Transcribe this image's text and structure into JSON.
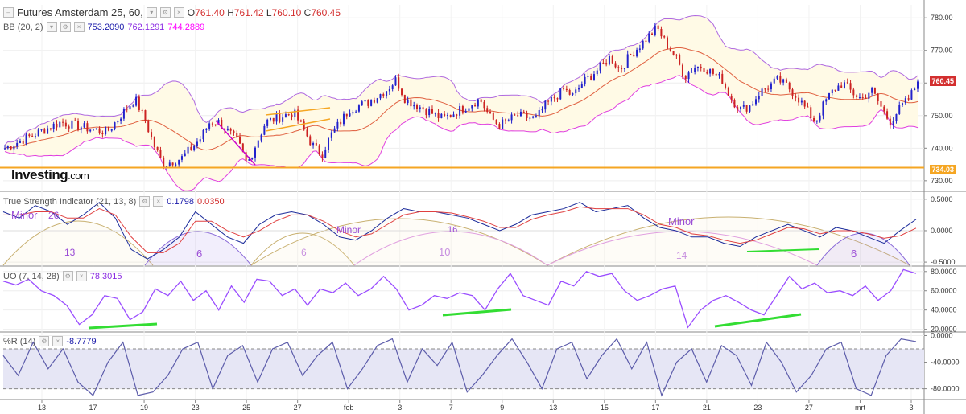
{
  "header": {
    "symbol": "Futures Amsterdam 25, 60,",
    "open_label": "O",
    "open": "761.40",
    "high_label": "H",
    "high": "761.42",
    "low_label": "L",
    "low": "760.10",
    "close_label": "C",
    "close": "760.45",
    "dropdown_icon": "chevron-down-icon"
  },
  "bb": {
    "label": "BB (20, 2)",
    "v1": "753.2090",
    "v2": "762.1291",
    "v3": "744.2889",
    "colors": {
      "v1": "#1a1aaa",
      "v2": "#8a2be2",
      "v3": "#ff00ff"
    }
  },
  "tsi": {
    "label": "True Strength Indicator (21, 13, 8)",
    "v1": "0.1798",
    "v2": "0.0350"
  },
  "uo": {
    "label": "UO (7, 14, 28)",
    "v1": "78.3015"
  },
  "wr": {
    "label": "%R (14)",
    "v1": "-8.7779"
  },
  "logo": {
    "main": "Investing",
    "suffix": ".com"
  },
  "price_tags": {
    "last": "760.45",
    "support": "734.03"
  },
  "colors": {
    "up": "#2222cc",
    "down": "#cc2222",
    "band": "#b06ae0",
    "band_fill": "#fffae6",
    "basis": "#e06040",
    "support": "#f5a623",
    "uo": "#9a4dff",
    "wr": "#5c5caa",
    "annot_green": "#33dd33",
    "cycle_text": "#9b4dd6"
  },
  "chart_data": [
    {
      "type": "candlestick",
      "title": "Futures Amsterdam 25, 60,",
      "ylim": [
        727,
        784
      ],
      "yticks": [
        "730.00",
        "740.00",
        "750.00",
        "760.00",
        "770.00",
        "780.00"
      ],
      "yticks_values": [
        730,
        740,
        750,
        760,
        770,
        780
      ],
      "xticks": [
        "13",
        "17",
        "19",
        "23",
        "25",
        "27",
        "feb",
        "3",
        "7",
        "9",
        "13",
        "15",
        "17",
        "21",
        "23",
        "27",
        "mrt",
        "3"
      ],
      "close_path": [
        [
          0,
          740
        ],
        [
          3,
          744
        ],
        [
          6,
          748
        ],
        [
          9,
          746
        ],
        [
          11,
          745
        ],
        [
          13,
          752
        ],
        [
          14,
          755
        ],
        [
          15,
          749
        ],
        [
          16,
          741
        ],
        [
          17,
          735
        ],
        [
          19,
          737
        ],
        [
          21,
          743
        ],
        [
          22,
          748
        ],
        [
          23,
          748
        ],
        [
          25,
          742
        ],
        [
          26,
          735
        ],
        [
          28,
          748
        ],
        [
          30,
          750
        ],
        [
          31,
          751
        ],
        [
          32,
          746
        ],
        [
          33,
          741
        ],
        [
          34,
          738
        ],
        [
          35,
          744
        ],
        [
          36,
          748
        ],
        [
          37,
          752
        ],
        [
          39,
          754
        ],
        [
          41,
          758
        ],
        [
          42,
          761
        ],
        [
          43,
          755
        ],
        [
          45,
          752
        ],
        [
          47,
          749
        ],
        [
          49,
          752
        ],
        [
          51,
          755
        ],
        [
          52,
          750
        ],
        [
          53,
          747
        ],
        [
          55,
          750
        ],
        [
          57,
          749
        ],
        [
          58,
          753
        ],
        [
          60,
          758
        ],
        [
          61,
          756
        ],
        [
          62,
          760
        ],
        [
          64,
          765
        ],
        [
          65,
          768
        ],
        [
          66,
          764
        ],
        [
          67,
          768
        ],
        [
          69,
          774
        ],
        [
          70,
          777
        ],
        [
          71,
          772
        ],
        [
          72,
          768
        ],
        [
          73,
          762
        ],
        [
          74,
          765
        ],
        [
          75,
          765
        ],
        [
          77,
          761
        ],
        [
          78,
          755
        ],
        [
          79,
          752
        ],
        [
          80,
          753
        ],
        [
          81,
          757
        ],
        [
          83,
          761
        ],
        [
          84,
          759
        ],
        [
          85,
          756
        ],
        [
          86,
          752
        ],
        [
          87,
          748
        ],
        [
          88,
          754
        ],
        [
          89,
          758
        ],
        [
          90,
          760
        ],
        [
          91,
          757
        ],
        [
          92,
          755
        ],
        [
          93,
          758
        ],
        [
          94,
          753
        ],
        [
          95,
          748
        ],
        [
          96,
          752
        ],
        [
          97,
          755
        ],
        [
          98,
          760
        ]
      ],
      "bb_upper_label": "BB (20, 2)",
      "horizontal_line": 734.03,
      "last_price": 760.45
    },
    {
      "type": "line",
      "title": "True Strength Indicator (21, 13, 8)",
      "ylim": [
        -0.55,
        0.6
      ],
      "yticks": [
        "-0.5000",
        "0.0000",
        "0.5000"
      ],
      "yticks_values": [
        -0.5,
        0,
        0.5
      ],
      "series": [
        {
          "values": [
            0.3,
            0.2,
            0.4,
            0.3,
            0.1,
            0.25,
            0.45,
            0.2,
            -0.3,
            -0.45,
            -0.3,
            -0.1,
            0.3,
            0.1,
            -0.1,
            -0.2,
            0.1,
            0.25,
            0.3,
            0.25,
            0.1,
            -0.1,
            -0.15,
            0.0,
            0.2,
            0.35,
            0.3,
            0.3,
            0.25,
            0.2,
            0.1,
            0.0,
            0.1,
            0.25,
            0.3,
            0.35,
            0.45,
            0.3,
            0.35,
            0.4,
            0.2,
            0.05,
            0.0,
            -0.1,
            -0.1,
            -0.2,
            -0.25,
            -0.1,
            0.0,
            0.1,
            0.0,
            -0.1,
            0.05,
            0.0,
            -0.1,
            -0.2,
            0.0,
            0.18
          ]
        },
        {
          "values": [
            0.25,
            0.25,
            0.3,
            0.3,
            0.2,
            0.2,
            0.35,
            0.25,
            -0.1,
            -0.35,
            -0.35,
            -0.2,
            0.15,
            0.15,
            0.0,
            -0.1,
            0.0,
            0.15,
            0.25,
            0.25,
            0.15,
            0.0,
            -0.1,
            -0.05,
            0.1,
            0.25,
            0.3,
            0.3,
            0.28,
            0.22,
            0.15,
            0.05,
            0.05,
            0.18,
            0.25,
            0.3,
            0.38,
            0.35,
            0.35,
            0.35,
            0.25,
            0.1,
            0.05,
            -0.05,
            -0.08,
            -0.15,
            -0.2,
            -0.15,
            -0.05,
            0.05,
            0.03,
            -0.05,
            0.0,
            0.0,
            -0.05,
            -0.12,
            -0.08,
            0.04
          ]
        }
      ],
      "annotations": [
        "Minor",
        "26",
        "13",
        "6",
        "Minor",
        "6",
        "16",
        "10",
        "Minor",
        "14",
        "6"
      ]
    },
    {
      "type": "line",
      "title": "UO (7, 14, 28)",
      "ylim": [
        18,
        84
      ],
      "yticks": [
        "20.0000",
        "40.0000",
        "60.0000",
        "80.0000"
      ],
      "yticks_values": [
        20,
        40,
        60,
        80
      ],
      "series": [
        {
          "values": [
            70,
            66,
            72,
            60,
            55,
            45,
            25,
            35,
            55,
            52,
            30,
            38,
            62,
            55,
            70,
            50,
            60,
            40,
            65,
            48,
            72,
            70,
            55,
            62,
            45,
            62,
            58,
            68,
            55,
            62,
            75,
            62,
            40,
            45,
            55,
            52,
            58,
            55,
            40,
            62,
            78,
            55,
            50,
            45,
            70,
            65,
            80,
            75,
            78,
            60,
            50,
            55,
            62,
            65,
            22,
            40,
            50,
            55,
            48,
            40,
            35,
            55,
            75,
            62,
            68,
            58,
            60,
            55,
            65,
            50,
            60,
            82,
            78
          ]
        }
      ]
    },
    {
      "type": "line",
      "title": "%R (14)",
      "ylim": [
        -95,
        3
      ],
      "yticks": [
        "-80.0000",
        "-40.0000",
        "0.0000"
      ],
      "yticks_values": [
        -80,
        -40,
        0
      ],
      "series": [
        {
          "values": [
            -30,
            -60,
            -10,
            -50,
            -20,
            -70,
            -90,
            -40,
            -10,
            -90,
            -85,
            -60,
            -20,
            -10,
            -80,
            -30,
            -15,
            -70,
            -20,
            -10,
            -60,
            -30,
            -10,
            -80,
            -50,
            -15,
            -5,
            -70,
            -20,
            -45,
            -10,
            -85,
            -60,
            -30,
            -5,
            -40,
            -80,
            -20,
            -10,
            -65,
            -30,
            -5,
            -50,
            -10,
            -90,
            -40,
            -20,
            -70,
            -15,
            -30,
            -75,
            -10,
            -40,
            -85,
            -60,
            -20,
            -10,
            -80,
            -90,
            -30,
            -5,
            -9
          ]
        }
      ]
    }
  ]
}
